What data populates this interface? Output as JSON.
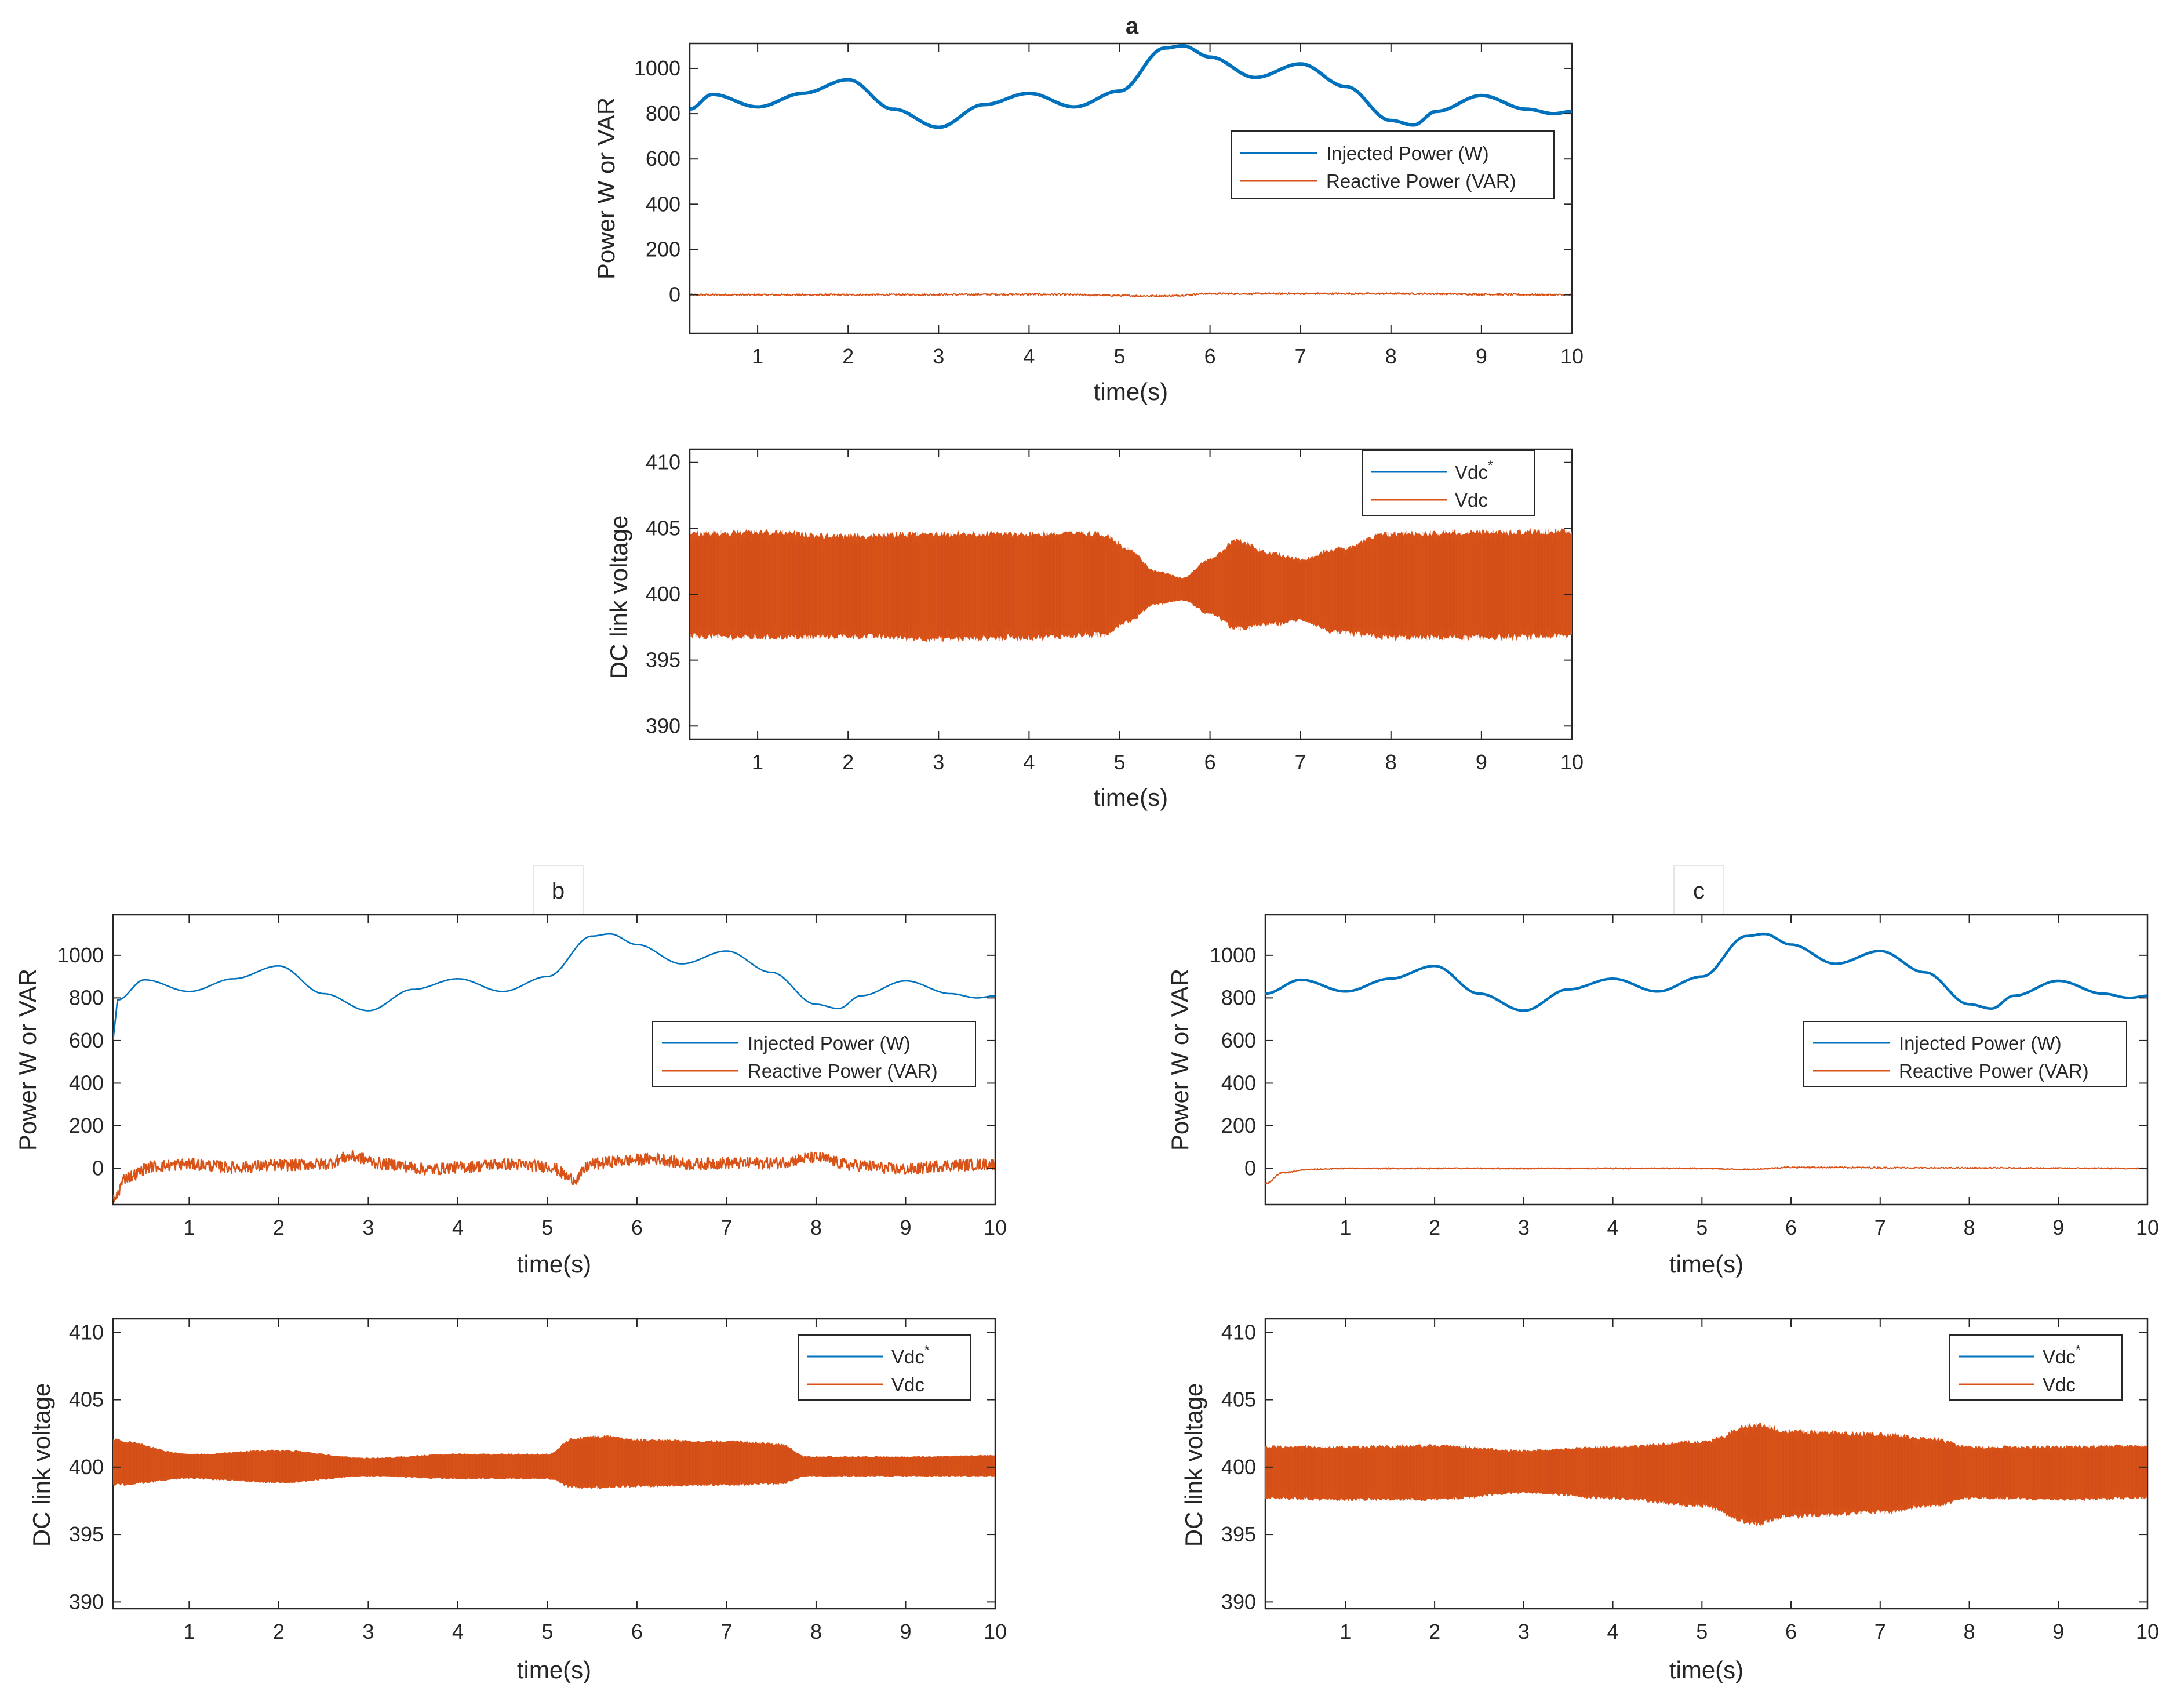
{
  "figure": {
    "panel_labels": [
      "a",
      "b",
      "c"
    ]
  },
  "colors": {
    "injected": "#0072BD",
    "reactive": "#D95319",
    "axis": "#262626"
  },
  "chart_data": [
    {
      "id": "a-power",
      "panel": "a",
      "type": "line",
      "title": "a",
      "xlabel": "time(s)",
      "ylabel": "Power W or VAR",
      "xlim": [
        0.25,
        10
      ],
      "ylim": [
        -170,
        1110
      ],
      "xticks": [
        1,
        2,
        3,
        4,
        5,
        6,
        7,
        8,
        9,
        10
      ],
      "yticks": [
        0,
        200,
        400,
        600,
        800,
        1000
      ],
      "legend_position": "right",
      "series": [
        {
          "name": "Injected Power (W)",
          "kind": "power",
          "line_weight": "thick",
          "x": [
            0.25,
            0.5,
            1.0,
            1.5,
            2.0,
            2.5,
            3.0,
            3.5,
            4.0,
            4.5,
            5.0,
            5.5,
            5.7,
            6.0,
            6.5,
            7.0,
            7.5,
            8.0,
            8.25,
            8.5,
            9.0,
            9.5,
            9.8,
            10.0
          ],
          "y": [
            820,
            885,
            830,
            890,
            950,
            820,
            740,
            840,
            890,
            830,
            900,
            1090,
            1100,
            1050,
            960,
            1020,
            920,
            770,
            750,
            810,
            880,
            820,
            800,
            810
          ]
        },
        {
          "name": "Reactive Power (VAR)",
          "kind": "reactive",
          "x": [
            0.25,
            2,
            4,
            5.5,
            6,
            8,
            10
          ],
          "y": [
            0,
            0,
            2,
            -5,
            5,
            5,
            0
          ],
          "noise": 4
        }
      ]
    },
    {
      "id": "a-dc",
      "panel": "a",
      "type": "line",
      "xlabel": "time(s)",
      "ylabel": "DC link voltage",
      "xlim": [
        0.25,
        10
      ],
      "ylim": [
        389,
        411
      ],
      "xticks": [
        1,
        2,
        3,
        4,
        5,
        6,
        7,
        8,
        9,
        10
      ],
      "yticks": [
        390,
        395,
        400,
        405,
        410
      ],
      "legend_position": "top-right",
      "series": [
        {
          "name": "Vdc",
          "sup": "*",
          "kind": "ref",
          "x": [
            0.25,
            10
          ],
          "y": [
            400,
            400
          ]
        },
        {
          "name": "Vdc",
          "kind": "band",
          "center": 400,
          "x": [
            0.25,
            1,
            2,
            3,
            4,
            4.8,
            5.1,
            5.4,
            5.7,
            6.0,
            6.3,
            6.7,
            7.0,
            7.4,
            8.0,
            9.0,
            10.0
          ],
          "y_max": [
            404.8,
            404.9,
            404.6,
            404.8,
            404.8,
            404.8,
            403.6,
            401.8,
            401.3,
            402.8,
            404.2,
            403.2,
            402.8,
            403.6,
            404.8,
            404.9,
            405.0
          ],
          "y_min": [
            396.6,
            396.5,
            396.6,
            396.4,
            396.5,
            396.7,
            397.8,
            399.2,
            399.5,
            398.4,
            397.2,
            397.6,
            397.9,
            396.9,
            396.5,
            396.5,
            396.6
          ]
        }
      ]
    },
    {
      "id": "b-power",
      "panel": "b",
      "type": "line",
      "title": "b",
      "xlabel": "time(s)",
      "ylabel": "Power W or VAR",
      "xlim": [
        0.15,
        10
      ],
      "ylim": [
        -170,
        1190
      ],
      "xticks": [
        1,
        2,
        3,
        4,
        5,
        6,
        7,
        8,
        9,
        10
      ],
      "yticks": [
        0,
        200,
        400,
        600,
        800,
        1000
      ],
      "legend_position": "right",
      "series": [
        {
          "name": "Injected Power (W)",
          "kind": "power",
          "line_weight": "thin",
          "x": [
            0.15,
            0.2,
            0.5,
            1.0,
            1.5,
            2.0,
            2.5,
            3.0,
            3.5,
            4.0,
            4.5,
            5.0,
            5.5,
            5.7,
            6.0,
            6.5,
            7.0,
            7.5,
            8.0,
            8.25,
            8.5,
            9.0,
            9.5,
            9.8,
            10.0
          ],
          "y": [
            600,
            790,
            885,
            830,
            890,
            950,
            820,
            740,
            840,
            890,
            830,
            900,
            1090,
            1100,
            1050,
            960,
            1020,
            920,
            770,
            750,
            810,
            880,
            820,
            800,
            810
          ]
        },
        {
          "name": "Reactive Power (VAR)",
          "kind": "reactive",
          "noise": 28,
          "x": [
            0.15,
            0.3,
            0.6,
            1,
            1.5,
            2,
            2.5,
            2.8,
            3.2,
            3.7,
            4,
            4.5,
            5,
            5.3,
            5.5,
            5.8,
            6.2,
            6.6,
            7,
            7.5,
            8,
            8.4,
            9,
            9.5,
            10
          ],
          "y": [
            -150,
            -40,
            10,
            20,
            5,
            15,
            20,
            55,
            20,
            -5,
            5,
            20,
            10,
            -50,
            20,
            35,
            45,
            20,
            25,
            25,
            50,
            15,
            -5,
            15,
            20
          ]
        }
      ]
    },
    {
      "id": "b-dc",
      "panel": "b",
      "type": "line",
      "xlabel": "time(s)",
      "ylabel": "DC link voltage",
      "xlim": [
        0.15,
        10
      ],
      "ylim": [
        389.5,
        411
      ],
      "xticks": [
        1,
        2,
        3,
        4,
        5,
        6,
        7,
        8,
        9,
        10
      ],
      "yticks": [
        390,
        395,
        400,
        405,
        410
      ],
      "legend_position": "top-right",
      "series": [
        {
          "name": "Vdc",
          "sup": "*",
          "kind": "ref",
          "x": [
            0.15,
            10
          ],
          "y": [
            400,
            400
          ]
        },
        {
          "name": "Vdc",
          "kind": "band",
          "center": 400,
          "x": [
            0.15,
            1,
            2,
            3,
            4,
            5,
            5.3,
            5.6,
            6,
            7,
            7.6,
            7.9,
            9,
            10
          ],
          "y_max": [
            402.1,
            401,
            401.3,
            400.7,
            401,
            401,
            402.2,
            402.4,
            402.1,
            402.0,
            401.8,
            400.8,
            400.8,
            400.9
          ],
          "y_min": [
            398.6,
            399.1,
            398.8,
            399.3,
            399.1,
            399.1,
            398.4,
            398.4,
            398.5,
            398.6,
            398.7,
            399.3,
            399.3,
            399.3
          ]
        }
      ]
    },
    {
      "id": "c-power",
      "panel": "c",
      "type": "line",
      "title": "c",
      "xlabel": "time(s)",
      "ylabel": "Power W or VAR",
      "xlim": [
        0.1,
        10
      ],
      "ylim": [
        -170,
        1190
      ],
      "xticks": [
        1,
        2,
        3,
        4,
        5,
        6,
        7,
        8,
        9,
        10
      ],
      "yticks": [
        0,
        200,
        400,
        600,
        800,
        1000
      ],
      "legend_position": "right",
      "series": [
        {
          "name": "Injected Power (W)",
          "kind": "power",
          "line_weight": "medium",
          "x": [
            0.1,
            0.5,
            1.0,
            1.5,
            2.0,
            2.5,
            3.0,
            3.5,
            4.0,
            4.5,
            5.0,
            5.5,
            5.7,
            6.0,
            6.5,
            7.0,
            7.5,
            8.0,
            8.25,
            8.5,
            9.0,
            9.5,
            9.8,
            10.0
          ],
          "y": [
            820,
            885,
            830,
            890,
            950,
            820,
            740,
            840,
            890,
            830,
            900,
            1090,
            1100,
            1050,
            960,
            1020,
            920,
            770,
            750,
            810,
            880,
            820,
            800,
            810
          ]
        },
        {
          "name": "Reactive Power (VAR)",
          "kind": "reactive",
          "noise": 3,
          "x": [
            0.1,
            0.3,
            0.6,
            1,
            2,
            3,
            4,
            5,
            5.5,
            6,
            8,
            10
          ],
          "y": [
            -70,
            -20,
            -5,
            0,
            0,
            0,
            0,
            0,
            -5,
            5,
            2,
            0
          ]
        }
      ]
    },
    {
      "id": "c-dc",
      "panel": "c",
      "type": "line",
      "xlabel": "time(s)",
      "ylabel": "DC link voltage",
      "xlim": [
        0.1,
        10
      ],
      "ylim": [
        389.5,
        411
      ],
      "xticks": [
        1,
        2,
        3,
        4,
        5,
        6,
        7,
        8,
        9,
        10
      ],
      "yticks": [
        390,
        395,
        400,
        405,
        410
      ],
      "legend_position": "top-right",
      "series": [
        {
          "name": "Vdc",
          "sup": "*",
          "kind": "ref",
          "x": [
            0.1,
            10
          ],
          "y": [
            400,
            400
          ]
        },
        {
          "name": "Vdc",
          "kind": "band",
          "center": 400,
          "x": [
            0.1,
            1,
            2,
            3,
            4,
            5,
            5.6,
            6,
            7,
            7.6,
            8,
            9,
            10
          ],
          "y_max": [
            401.6,
            401.6,
            401.7,
            401.3,
            401.6,
            402.0,
            403.3,
            402.8,
            402.6,
            402.2,
            401.6,
            401.6,
            401.7
          ],
          "y_min": [
            397.6,
            397.5,
            397.5,
            398.0,
            397.6,
            397.0,
            395.6,
            396.2,
            396.5,
            397.0,
            397.6,
            397.5,
            397.6
          ]
        }
      ]
    }
  ]
}
